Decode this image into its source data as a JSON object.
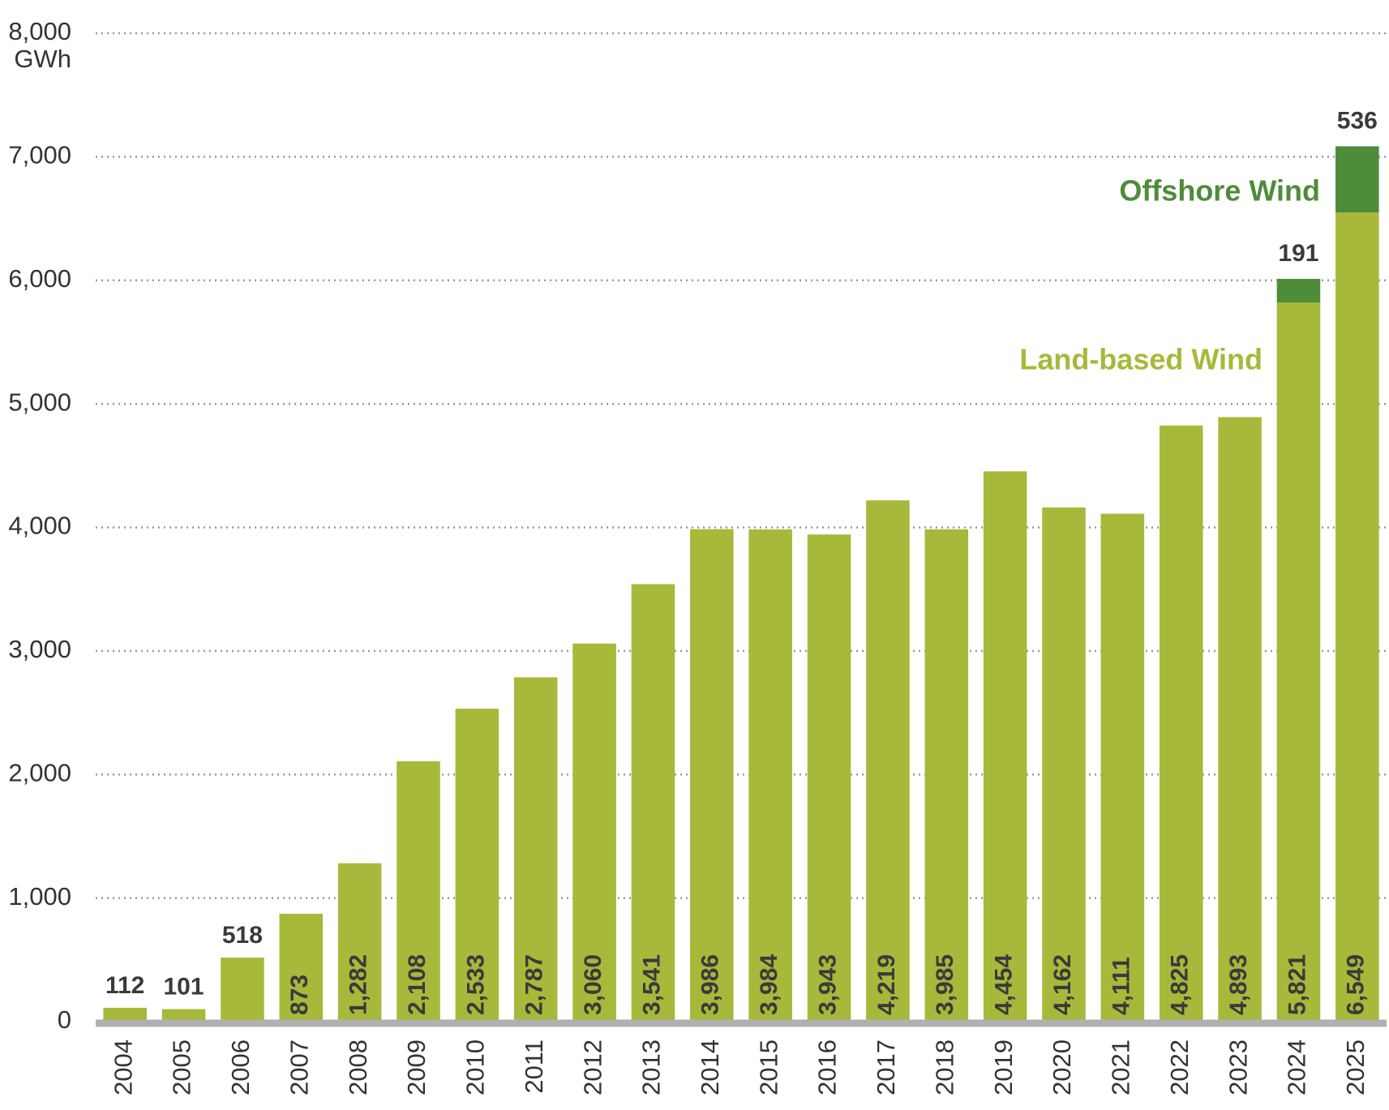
{
  "chart_data": {
    "type": "stacked_bar",
    "y_label": "GWh",
    "categories": [
      "2004",
      "2005",
      "2006",
      "2007",
      "2008",
      "2009",
      "2010",
      "2011",
      "2012",
      "2013",
      "2014",
      "2015",
      "2016",
      "2017",
      "2018",
      "2019",
      "2020",
      "2021",
      "2022",
      "2023",
      "2024",
      "2025"
    ],
    "series": [
      {
        "name": "Land-based Wind",
        "color": "#a8b83a",
        "values": [
          112,
          101,
          518,
          873,
          1282,
          2108,
          2533,
          2787,
          3060,
          3541,
          3986,
          3984,
          3943,
          4219,
          3985,
          4454,
          4162,
          4111,
          4825,
          4893,
          5821,
          6549
        ],
        "value_labels": [
          "112",
          "101",
          "518",
          "873",
          "1,282",
          "2,108",
          "2,533",
          "2,787",
          "3,060",
          "3,541",
          "3,986",
          "3,984",
          "3,943",
          "4,219",
          "3,985",
          "4,454",
          "4,162",
          "4,111",
          "4,825",
          "4,893",
          "5,821",
          "6,549"
        ]
      },
      {
        "name": "Offshore Wind",
        "color": "#4e8c3a",
        "values": [
          null,
          null,
          null,
          null,
          null,
          null,
          null,
          null,
          null,
          null,
          null,
          null,
          null,
          null,
          null,
          null,
          null,
          null,
          null,
          null,
          191,
          536
        ]
      }
    ],
    "ylim": [
      0,
      8000
    ],
    "yticks": [
      0,
      {
        "value": 1000,
        "label": "1,000"
      },
      {
        "value": 2000,
        "label": "2,000"
      },
      {
        "value": 3000,
        "label": "3,000"
      },
      {
        "value": 4000,
        "label": "4,000"
      },
      {
        "value": 5000,
        "label": "5,000"
      },
      {
        "value": 6000,
        "label": "6,000"
      },
      {
        "value": 7000,
        "label": "7,000"
      },
      {
        "value": 8000,
        "label": "8,000"
      }
    ],
    "grid": true
  }
}
